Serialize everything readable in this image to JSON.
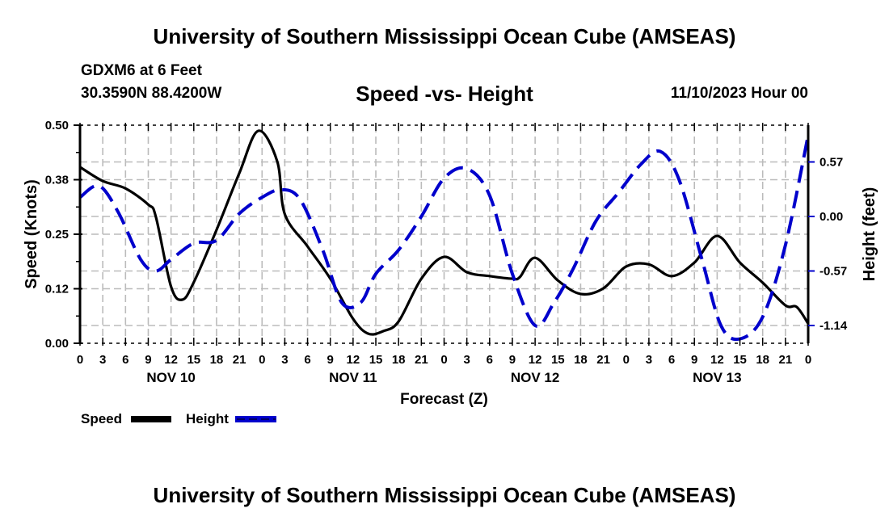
{
  "header": {
    "title": "University of Southern Mississippi Ocean Cube (AMSEAS)",
    "station": "GDXM6 at 6 Feet",
    "coordinates": "30.3590N  88.4200W",
    "date": "11/10/2023 Hour 00"
  },
  "footer": {
    "title": "University of Southern Mississippi Ocean Cube (AMSEAS)"
  },
  "colors": {
    "speed": "#000000",
    "height": "#0000cc",
    "grid": "#bbbbbb"
  },
  "chart_data": {
    "type": "line",
    "title": "Speed -vs- Height",
    "xlabel": "Forecast (Z)",
    "ylabel": "Speed (Knots)",
    "y2label": "Height (feet)",
    "xlim_hours": [
      0,
      96
    ],
    "ylim": [
      0,
      0.5
    ],
    "y2lim": [
      -1.45,
      1.0
    ],
    "grid": true,
    "x_tick_labels": [
      "0",
      "3",
      "6",
      "9",
      "12",
      "15",
      "18",
      "21",
      "0",
      "3",
      "6",
      "9",
      "12",
      "15",
      "18",
      "21",
      "0",
      "3",
      "6",
      "9",
      "12",
      "15",
      "18",
      "21",
      "0",
      "3",
      "6",
      "9",
      "12",
      "15",
      "18",
      "21",
      "0"
    ],
    "day_labels": [
      {
        "label": "NOV 10",
        "center_hour": 12
      },
      {
        "label": "NOV 11",
        "center_hour": 36
      },
      {
        "label": "NOV 12",
        "center_hour": 60
      },
      {
        "label": "NOV 13",
        "center_hour": 84
      }
    ],
    "y_ticks": [
      "0.00",
      "0.12",
      "0.25",
      "0.38",
      "0.50"
    ],
    "y_tick_values": [
      0,
      0.125,
      0.25,
      0.375,
      0.5
    ],
    "y2_ticks": [
      "-1.14",
      "-0.57",
      "0.00",
      "0.57"
    ],
    "y2_tick_values": [
      -1.14,
      -0.57,
      0.0,
      0.57
    ],
    "legend": [
      {
        "name": "Speed",
        "style": "solid"
      },
      {
        "name": "Height",
        "style": "dashed"
      }
    ],
    "legend_position": "bottom-left",
    "series": [
      {
        "name": "Speed",
        "axis": "left",
        "x_hours": [
          0,
          3,
          6,
          9,
          10,
          12,
          13.5,
          15,
          18,
          21,
          23.5,
          26,
          27,
          30,
          33,
          36,
          38,
          40,
          42,
          45,
          48,
          51,
          54,
          57,
          58,
          60,
          63,
          66,
          69,
          72,
          75,
          78,
          81,
          84,
          87,
          90,
          93,
          94.5,
          96
        ],
        "values": [
          0.404,
          0.372,
          0.355,
          0.318,
          0.29,
          0.13,
          0.1,
          0.14,
          0.26,
          0.39,
          0.487,
          0.417,
          0.296,
          0.222,
          0.148,
          0.056,
          0.022,
          0.028,
          0.05,
          0.148,
          0.198,
          0.163,
          0.154,
          0.148,
          0.152,
          0.196,
          0.144,
          0.113,
          0.126,
          0.176,
          0.181,
          0.154,
          0.185,
          0.246,
          0.185,
          0.139,
          0.087,
          0.083,
          0.045
        ]
      },
      {
        "name": "Height",
        "axis": "right",
        "x_hours": [
          0,
          2.5,
          5,
          8,
          10,
          12,
          15,
          18,
          21,
          24,
          26.5,
          29,
          32,
          34.5,
          37,
          39,
          42,
          45,
          48,
          51,
          54,
          57,
          60,
          62.5,
          65,
          68,
          71,
          74,
          76.5,
          79,
          82,
          84.5,
          87,
          90,
          93,
          96
        ],
        "values": [
          0.2,
          0.32,
          0.05,
          -0.45,
          -0.57,
          -0.45,
          -0.28,
          -0.25,
          0.03,
          0.2,
          0.28,
          0.18,
          -0.35,
          -0.9,
          -0.9,
          -0.6,
          -0.35,
          0.0,
          0.4,
          0.5,
          0.22,
          -0.6,
          -1.14,
          -0.9,
          -0.55,
          -0.05,
          0.25,
          0.55,
          0.68,
          0.38,
          -0.45,
          -1.14,
          -1.28,
          -1.05,
          -0.3,
          0.85
        ]
      }
    ]
  }
}
